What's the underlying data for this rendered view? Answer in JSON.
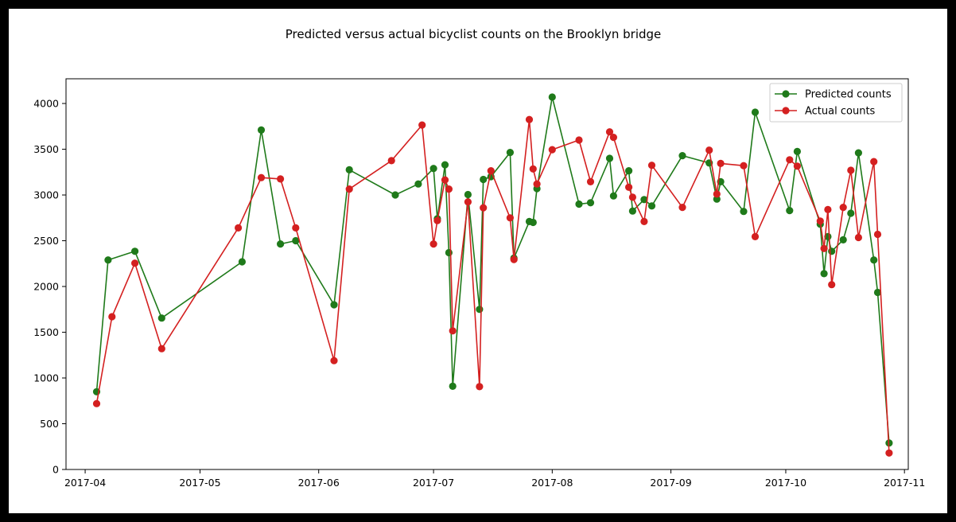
{
  "chart_data": {
    "type": "line",
    "title": "Predicted versus actual bicyclist counts on the Brooklyn bridge",
    "xlabel": "",
    "ylabel": "",
    "x_ticks": [
      "2017-04",
      "2017-05",
      "2017-06",
      "2017-07",
      "2017-08",
      "2017-09",
      "2017-10",
      "2017-11"
    ],
    "y_ticks": [
      0,
      500,
      1000,
      1500,
      2000,
      2500,
      3000,
      3500,
      4000
    ],
    "xlim": [
      "2017-03-27",
      "2017-11-02"
    ],
    "ylim": [
      0,
      4270
    ],
    "grid": false,
    "legend_position": "top-right",
    "series": [
      {
        "name": "Predicted counts",
        "color": "#1f7a1a",
        "marker": "circle",
        "points": [
          [
            "2017-04-04",
            850
          ],
          [
            "2017-04-07",
            2290
          ],
          [
            "2017-04-14",
            2385
          ],
          [
            "2017-04-21",
            1655
          ],
          [
            "2017-05-12",
            2270
          ],
          [
            "2017-05-17",
            3710
          ],
          [
            "2017-05-22",
            2465
          ],
          [
            "2017-05-26",
            2500
          ],
          [
            "2017-06-05",
            1800
          ],
          [
            "2017-06-09",
            3275
          ],
          [
            "2017-06-21",
            3000
          ],
          [
            "2017-06-27",
            3120
          ],
          [
            "2017-07-01",
            3290
          ],
          [
            "2017-07-02",
            2740
          ],
          [
            "2017-07-04",
            3330
          ],
          [
            "2017-07-05",
            2370
          ],
          [
            "2017-07-06",
            910
          ],
          [
            "2017-07-10",
            3005
          ],
          [
            "2017-07-13",
            1750
          ],
          [
            "2017-07-14",
            3170
          ],
          [
            "2017-07-16",
            3200
          ],
          [
            "2017-07-21",
            3465
          ],
          [
            "2017-07-22",
            2310
          ],
          [
            "2017-07-26",
            2710
          ],
          [
            "2017-07-27",
            2700
          ],
          [
            "2017-07-28",
            3070
          ],
          [
            "2017-08-01",
            4070
          ],
          [
            "2017-08-08",
            2900
          ],
          [
            "2017-08-11",
            2915
          ],
          [
            "2017-08-16",
            3400
          ],
          [
            "2017-08-17",
            2990
          ],
          [
            "2017-08-21",
            3265
          ],
          [
            "2017-08-22",
            2825
          ],
          [
            "2017-08-25",
            2950
          ],
          [
            "2017-08-27",
            2880
          ],
          [
            "2017-09-04",
            3430
          ],
          [
            "2017-09-11",
            3350
          ],
          [
            "2017-09-13",
            2955
          ],
          [
            "2017-09-14",
            3145
          ],
          [
            "2017-09-20",
            2820
          ],
          [
            "2017-09-23",
            3905
          ],
          [
            "2017-10-02",
            2830
          ],
          [
            "2017-10-04",
            3475
          ],
          [
            "2017-10-10",
            2680
          ],
          [
            "2017-10-11",
            2140
          ],
          [
            "2017-10-12",
            2545
          ],
          [
            "2017-10-13",
            2385
          ],
          [
            "2017-10-16",
            2510
          ],
          [
            "2017-10-18",
            2800
          ],
          [
            "2017-10-20",
            3460
          ],
          [
            "2017-10-24",
            2290
          ],
          [
            "2017-10-25",
            1935
          ],
          [
            "2017-10-28",
            290
          ]
        ]
      },
      {
        "name": "Actual counts",
        "color": "#d42020",
        "marker": "circle",
        "points": [
          [
            "2017-04-04",
            720
          ],
          [
            "2017-04-08",
            1670
          ],
          [
            "2017-04-14",
            2255
          ],
          [
            "2017-04-21",
            1320
          ],
          [
            "2017-05-11",
            2640
          ],
          [
            "2017-05-17",
            3190
          ],
          [
            "2017-05-22",
            3175
          ],
          [
            "2017-05-26",
            2640
          ],
          [
            "2017-06-05",
            1190
          ],
          [
            "2017-06-09",
            3065
          ],
          [
            "2017-06-20",
            3375
          ],
          [
            "2017-06-28",
            3765
          ],
          [
            "2017-07-01",
            2465
          ],
          [
            "2017-07-02",
            2720
          ],
          [
            "2017-07-04",
            3165
          ],
          [
            "2017-07-05",
            3065
          ],
          [
            "2017-07-06",
            1515
          ],
          [
            "2017-07-10",
            2925
          ],
          [
            "2017-07-13",
            905
          ],
          [
            "2017-07-14",
            2860
          ],
          [
            "2017-07-16",
            3265
          ],
          [
            "2017-07-21",
            2750
          ],
          [
            "2017-07-22",
            2295
          ],
          [
            "2017-07-26",
            3825
          ],
          [
            "2017-07-27",
            3285
          ],
          [
            "2017-07-28",
            3120
          ],
          [
            "2017-08-01",
            3495
          ],
          [
            "2017-08-08",
            3600
          ],
          [
            "2017-08-11",
            3145
          ],
          [
            "2017-08-16",
            3690
          ],
          [
            "2017-08-17",
            3630
          ],
          [
            "2017-08-21",
            3085
          ],
          [
            "2017-08-22",
            2975
          ],
          [
            "2017-08-25",
            2710
          ],
          [
            "2017-08-27",
            3325
          ],
          [
            "2017-09-04",
            2865
          ],
          [
            "2017-09-11",
            3490
          ],
          [
            "2017-09-13",
            3010
          ],
          [
            "2017-09-14",
            3345
          ],
          [
            "2017-09-20",
            3320
          ],
          [
            "2017-09-23",
            2545
          ],
          [
            "2017-10-02",
            3385
          ],
          [
            "2017-10-04",
            3315
          ],
          [
            "2017-10-10",
            2715
          ],
          [
            "2017-10-11",
            2415
          ],
          [
            "2017-10-12",
            2840
          ],
          [
            "2017-10-13",
            2020
          ],
          [
            "2017-10-16",
            2865
          ],
          [
            "2017-10-18",
            3270
          ],
          [
            "2017-10-20",
            2535
          ],
          [
            "2017-10-24",
            3365
          ],
          [
            "2017-10-25",
            2570
          ],
          [
            "2017-10-28",
            180
          ]
        ]
      }
    ]
  }
}
